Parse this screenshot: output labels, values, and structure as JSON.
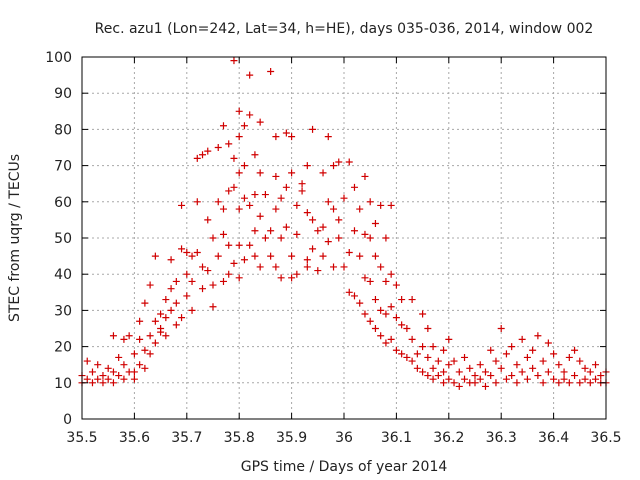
{
  "chart_data": {
    "type": "scatter",
    "title": "Rec. azu1 (Lon=242, Lat=34, h=HE), days 035-036, 2014, window 002",
    "xlabel": "GPS time / Days of year 2014",
    "ylabel": "STEC from uqrg / TECUs",
    "xlim": [
      35.5,
      36.5
    ],
    "ylim": [
      0,
      100
    ],
    "xticks": [
      35.5,
      35.6,
      35.7,
      35.8,
      35.9,
      36.0,
      36.1,
      36.2,
      36.3,
      36.4,
      36.5
    ],
    "xtick_labels": [
      "35.5",
      "35.6",
      "35.7",
      "35.8",
      "35.9",
      "36",
      "36.1",
      "36.2",
      "36.3",
      "36.4",
      "36.5"
    ],
    "yticks": [
      0,
      10,
      20,
      30,
      40,
      50,
      60,
      70,
      80,
      90,
      100
    ],
    "ytick_labels": [
      "0",
      "10",
      "20",
      "30",
      "40",
      "50",
      "60",
      "70",
      "80",
      "90",
      "100"
    ],
    "grid": true,
    "legend": "none",
    "marker": "plus",
    "color": "#d00000",
    "series": [
      {
        "points": [
          [
            35.5,
            12
          ],
          [
            35.5,
            10
          ],
          [
            35.51,
            16
          ],
          [
            35.51,
            11
          ],
          [
            35.52,
            13
          ],
          [
            35.52,
            10
          ],
          [
            35.53,
            15
          ],
          [
            35.53,
            11
          ],
          [
            35.54,
            12
          ],
          [
            35.54,
            10
          ],
          [
            35.55,
            14
          ],
          [
            35.55,
            11
          ],
          [
            35.56,
            23
          ],
          [
            35.56,
            13
          ],
          [
            35.56,
            10
          ],
          [
            35.57,
            17
          ],
          [
            35.57,
            12
          ],
          [
            35.58,
            22
          ],
          [
            35.58,
            15
          ],
          [
            35.58,
            11
          ],
          [
            35.59,
            23
          ],
          [
            35.59,
            13
          ],
          [
            35.6,
            18
          ],
          [
            35.6,
            13
          ],
          [
            35.6,
            11
          ],
          [
            35.61,
            27
          ],
          [
            35.61,
            22
          ],
          [
            35.61,
            15
          ],
          [
            35.62,
            32
          ],
          [
            35.62,
            19
          ],
          [
            35.62,
            14
          ],
          [
            35.63,
            37
          ],
          [
            35.63,
            23
          ],
          [
            35.63,
            18
          ],
          [
            35.64,
            27
          ],
          [
            35.64,
            21
          ],
          [
            35.64,
            45
          ],
          [
            35.65,
            29
          ],
          [
            35.65,
            25
          ],
          [
            35.65,
            24
          ],
          [
            35.66,
            33
          ],
          [
            35.66,
            28
          ],
          [
            35.66,
            23
          ],
          [
            35.67,
            36
          ],
          [
            35.67,
            30
          ],
          [
            35.67,
            44
          ],
          [
            35.68,
            38
          ],
          [
            35.68,
            32
          ],
          [
            35.68,
            26
          ],
          [
            35.69,
            59
          ],
          [
            35.69,
            47
          ],
          [
            35.69,
            28
          ],
          [
            35.7,
            40
          ],
          [
            35.7,
            34
          ],
          [
            35.7,
            46
          ],
          [
            35.71,
            45
          ],
          [
            35.71,
            38
          ],
          [
            35.71,
            30
          ],
          [
            35.72,
            72
          ],
          [
            35.72,
            60
          ],
          [
            35.72,
            46
          ],
          [
            35.73,
            73
          ],
          [
            35.73,
            42
          ],
          [
            35.73,
            36
          ],
          [
            35.74,
            74
          ],
          [
            35.74,
            55
          ],
          [
            35.74,
            41
          ],
          [
            35.75,
            50
          ],
          [
            35.75,
            37
          ],
          [
            35.75,
            31
          ],
          [
            35.76,
            75
          ],
          [
            35.76,
            60
          ],
          [
            35.76,
            45
          ],
          [
            35.77,
            81
          ],
          [
            35.77,
            58
          ],
          [
            35.77,
            51
          ],
          [
            35.77,
            38
          ],
          [
            35.78,
            76
          ],
          [
            35.78,
            63
          ],
          [
            35.78,
            48
          ],
          [
            35.78,
            40
          ],
          [
            35.79,
            99
          ],
          [
            35.79,
            72
          ],
          [
            35.79,
            64
          ],
          [
            35.79,
            43
          ],
          [
            35.8,
            85
          ],
          [
            35.8,
            78
          ],
          [
            35.8,
            68
          ],
          [
            35.8,
            58
          ],
          [
            35.8,
            48
          ],
          [
            35.8,
            39
          ],
          [
            35.81,
            81
          ],
          [
            35.81,
            70
          ],
          [
            35.81,
            61
          ],
          [
            35.81,
            44
          ],
          [
            35.82,
            95
          ],
          [
            35.82,
            84
          ],
          [
            35.82,
            59
          ],
          [
            35.82,
            48
          ],
          [
            35.83,
            73
          ],
          [
            35.83,
            62
          ],
          [
            35.83,
            52
          ],
          [
            35.83,
            45
          ],
          [
            35.84,
            82
          ],
          [
            35.84,
            68
          ],
          [
            35.84,
            56
          ],
          [
            35.84,
            42
          ],
          [
            35.85,
            62
          ],
          [
            35.85,
            50
          ],
          [
            35.86,
            96
          ],
          [
            35.86,
            52
          ],
          [
            35.86,
            45
          ],
          [
            35.87,
            78
          ],
          [
            35.87,
            67
          ],
          [
            35.87,
            58
          ],
          [
            35.87,
            42
          ],
          [
            35.88,
            61
          ],
          [
            35.88,
            50
          ],
          [
            35.88,
            39
          ],
          [
            35.89,
            79
          ],
          [
            35.89,
            64
          ],
          [
            35.89,
            53
          ],
          [
            35.9,
            78
          ],
          [
            35.9,
            68
          ],
          [
            35.9,
            45
          ],
          [
            35.9,
            39
          ],
          [
            35.91,
            59
          ],
          [
            35.91,
            51
          ],
          [
            35.91,
            40
          ],
          [
            35.92,
            65
          ],
          [
            35.92,
            63
          ],
          [
            35.93,
            70
          ],
          [
            35.93,
            57
          ],
          [
            35.93,
            44
          ],
          [
            35.93,
            42
          ],
          [
            35.94,
            80
          ],
          [
            35.94,
            55
          ],
          [
            35.94,
            47
          ],
          [
            35.95,
            52
          ],
          [
            35.95,
            41
          ],
          [
            35.96,
            68
          ],
          [
            35.96,
            53
          ],
          [
            35.96,
            45
          ],
          [
            35.97,
            78
          ],
          [
            35.97,
            60
          ],
          [
            35.97,
            49
          ],
          [
            35.98,
            70
          ],
          [
            35.98,
            58
          ],
          [
            35.98,
            42
          ],
          [
            35.99,
            71
          ],
          [
            35.99,
            55
          ],
          [
            35.99,
            50
          ],
          [
            36.0,
            61
          ],
          [
            36.0,
            42
          ],
          [
            36.01,
            71
          ],
          [
            36.01,
            46
          ],
          [
            36.01,
            35
          ],
          [
            36.02,
            64
          ],
          [
            36.02,
            52
          ],
          [
            36.02,
            34
          ],
          [
            36.03,
            58
          ],
          [
            36.03,
            45
          ],
          [
            36.03,
            32
          ],
          [
            36.04,
            67
          ],
          [
            36.04,
            51
          ],
          [
            36.04,
            39
          ],
          [
            36.04,
            29
          ],
          [
            36.05,
            60
          ],
          [
            36.05,
            50
          ],
          [
            36.05,
            38
          ],
          [
            36.05,
            27
          ],
          [
            36.06,
            54
          ],
          [
            36.06,
            45
          ],
          [
            36.06,
            33
          ],
          [
            36.06,
            25
          ],
          [
            36.07,
            59
          ],
          [
            36.07,
            42
          ],
          [
            36.07,
            30
          ],
          [
            36.07,
            23
          ],
          [
            36.08,
            50
          ],
          [
            36.08,
            38
          ],
          [
            36.08,
            29
          ],
          [
            36.08,
            21
          ],
          [
            36.09,
            59
          ],
          [
            36.09,
            40
          ],
          [
            36.09,
            31
          ],
          [
            36.09,
            22
          ],
          [
            36.1,
            37
          ],
          [
            36.1,
            28
          ],
          [
            36.1,
            19
          ],
          [
            36.11,
            33
          ],
          [
            36.11,
            26
          ],
          [
            36.11,
            18
          ],
          [
            36.12,
            25
          ],
          [
            36.12,
            17
          ],
          [
            36.13,
            33
          ],
          [
            36.13,
            22
          ],
          [
            36.13,
            16
          ],
          [
            36.14,
            18
          ],
          [
            36.14,
            14
          ],
          [
            36.15,
            29
          ],
          [
            36.15,
            20
          ],
          [
            36.15,
            13
          ],
          [
            36.16,
            25
          ],
          [
            36.16,
            17
          ],
          [
            36.16,
            12
          ],
          [
            36.17,
            20
          ],
          [
            36.17,
            14
          ],
          [
            36.17,
            11
          ],
          [
            36.18,
            16
          ],
          [
            36.18,
            12
          ],
          [
            36.19,
            19
          ],
          [
            36.19,
            13
          ],
          [
            36.19,
            10
          ],
          [
            36.2,
            22
          ],
          [
            36.2,
            15
          ],
          [
            36.2,
            11
          ],
          [
            36.21,
            16
          ],
          [
            36.21,
            10
          ],
          [
            36.22,
            13
          ],
          [
            36.22,
            9
          ],
          [
            36.23,
            17
          ],
          [
            36.23,
            11
          ],
          [
            36.24,
            14
          ],
          [
            36.24,
            10
          ],
          [
            36.25,
            12
          ],
          [
            36.25,
            10
          ],
          [
            36.26,
            15
          ],
          [
            36.26,
            11
          ],
          [
            36.27,
            13
          ],
          [
            36.27,
            9
          ],
          [
            36.28,
            19
          ],
          [
            36.28,
            12
          ],
          [
            36.29,
            16
          ],
          [
            36.29,
            10
          ],
          [
            36.3,
            25
          ],
          [
            36.3,
            14
          ],
          [
            36.31,
            18
          ],
          [
            36.31,
            11
          ],
          [
            36.32,
            20
          ],
          [
            36.32,
            12
          ],
          [
            36.33,
            15
          ],
          [
            36.33,
            10
          ],
          [
            36.34,
            22
          ],
          [
            36.34,
            13
          ],
          [
            36.35,
            17
          ],
          [
            36.35,
            11
          ],
          [
            36.36,
            19
          ],
          [
            36.36,
            14
          ],
          [
            36.37,
            23
          ],
          [
            36.37,
            12
          ],
          [
            36.38,
            16
          ],
          [
            36.38,
            10
          ],
          [
            36.39,
            21
          ],
          [
            36.39,
            13
          ],
          [
            36.4,
            18
          ],
          [
            36.4,
            11
          ],
          [
            36.41,
            15
          ],
          [
            36.41,
            10
          ],
          [
            36.42,
            13
          ],
          [
            36.42,
            11
          ],
          [
            36.43,
            17
          ],
          [
            36.43,
            10
          ],
          [
            36.44,
            19
          ],
          [
            36.44,
            12
          ],
          [
            36.45,
            16
          ],
          [
            36.45,
            10
          ],
          [
            36.46,
            14
          ],
          [
            36.46,
            11
          ],
          [
            36.47,
            13
          ],
          [
            36.47,
            10
          ],
          [
            36.48,
            15
          ],
          [
            36.48,
            11
          ],
          [
            36.49,
            12
          ],
          [
            36.49,
            10
          ],
          [
            36.5,
            13
          ],
          [
            36.5,
            10
          ]
        ]
      }
    ]
  }
}
